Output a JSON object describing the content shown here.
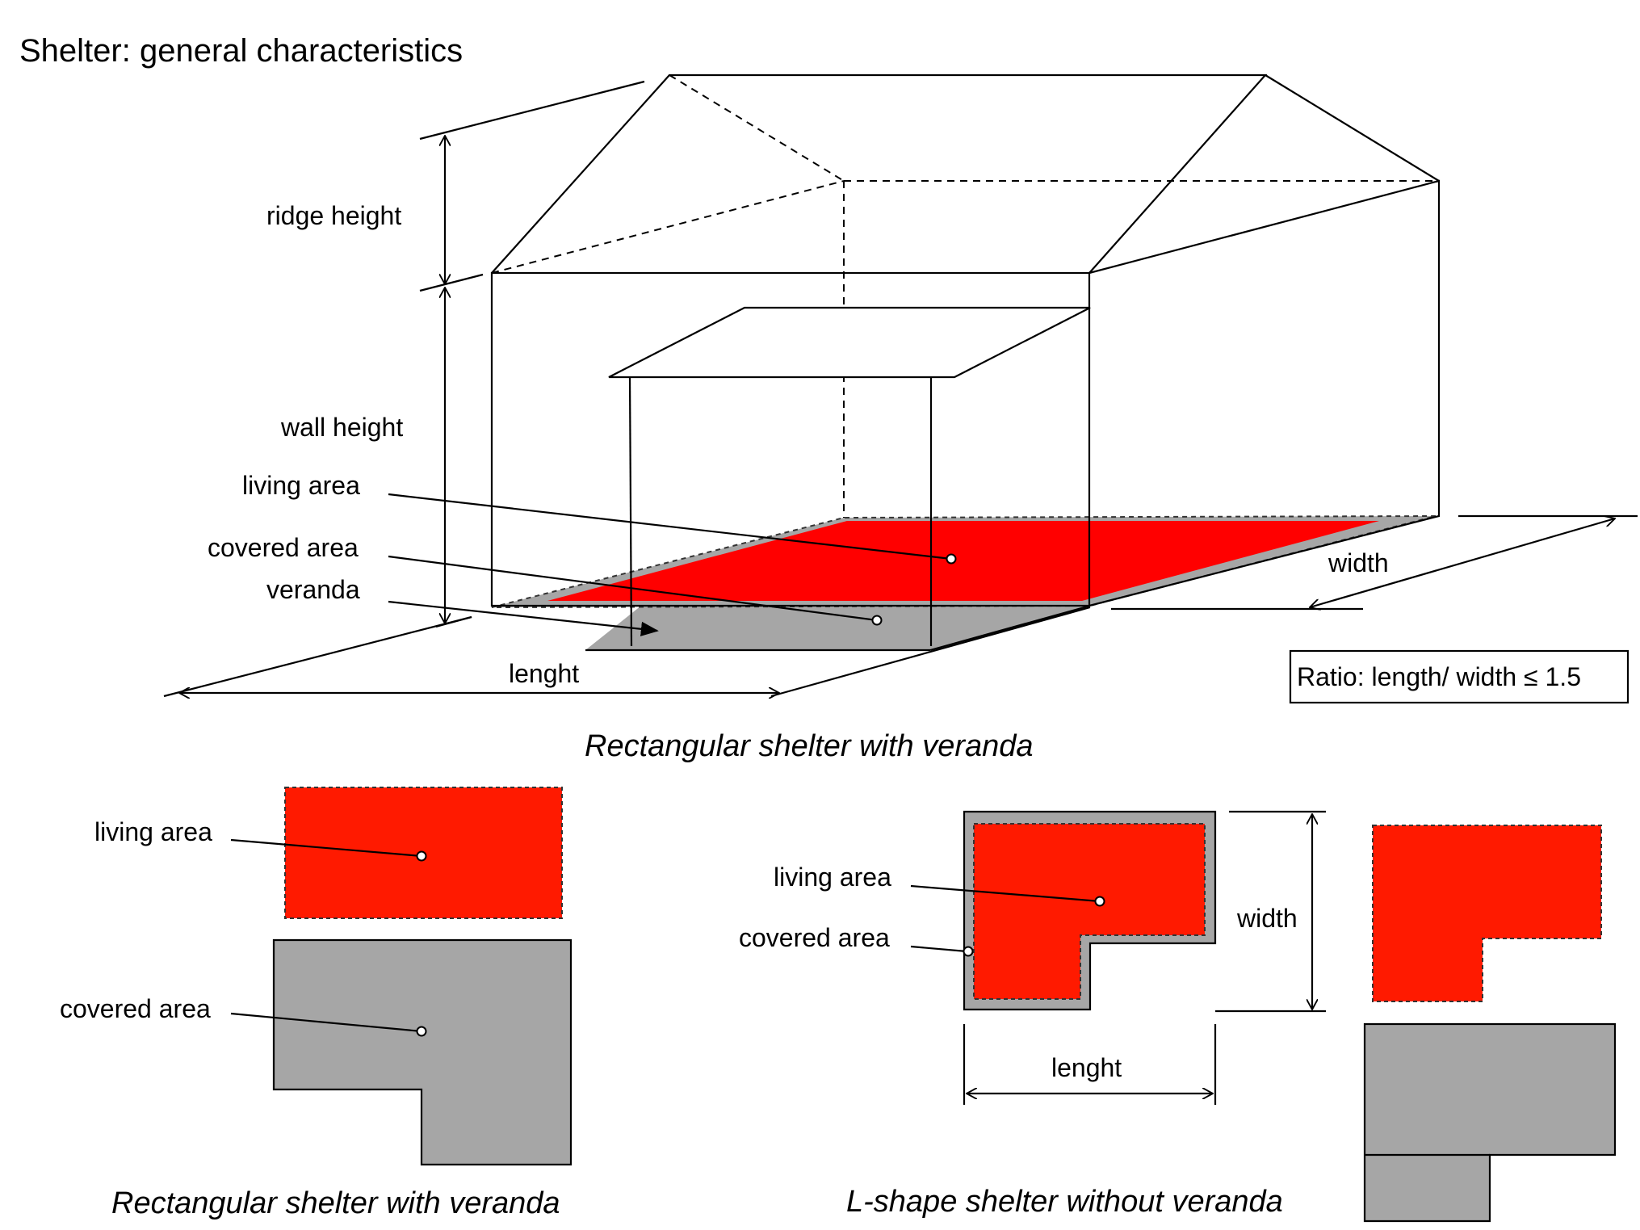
{
  "title": "Shelter: general characteristics",
  "colors": {
    "living_area": "#ff0000",
    "covered_area": "#a6a6a6"
  },
  "isometric": {
    "ridge_height": "ridge height",
    "wall_height": "wall height",
    "living_area": "living area",
    "covered_area": "covered area",
    "veranda": "veranda",
    "length": "lenght",
    "width": "width",
    "ratio": "Ratio: length/ width  ≤ 1.5",
    "caption": "Rectangular shelter with veranda"
  },
  "rect_plan": {
    "living_area": "living area",
    "covered_area": "covered area",
    "caption": "Rectangular shelter with veranda"
  },
  "l_plan": {
    "living_area": "living area",
    "covered_area": "covered area",
    "width": "width",
    "length": "lenght",
    "caption": "L-shape shelter without veranda"
  }
}
